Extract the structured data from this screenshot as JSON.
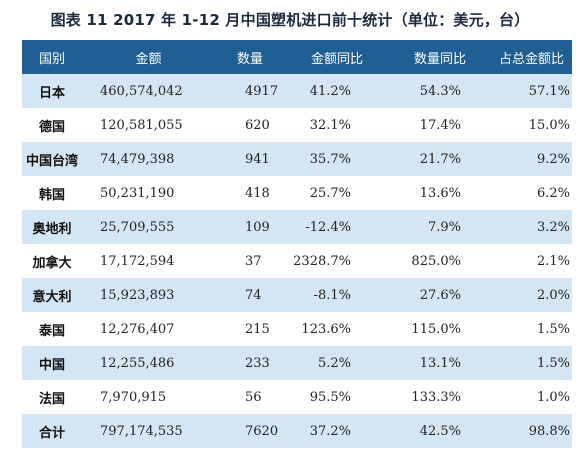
{
  "title": "图表 11    2017 年 1-12 月中国塑机进口前十统计（单位：美元，台）",
  "table": {
    "headers": [
      "国别",
      "金额",
      "数量",
      "金额同比",
      "数量同比",
      "占总金额比"
    ],
    "rows": [
      [
        "日本",
        "460,574,042",
        "4917",
        "41.2%",
        "54.3%",
        "57.1%"
      ],
      [
        "德国",
        "120,581,055",
        "620",
        "32.1%",
        "17.4%",
        "15.0%"
      ],
      [
        "中国台湾",
        "74,479,398",
        "941",
        "35.7%",
        "21.7%",
        "9.2%"
      ],
      [
        "韩国",
        "50,231,190",
        "418",
        "25.7%",
        "13.6%",
        "6.2%"
      ],
      [
        "奥地利",
        "25,709,555",
        "109",
        "-12.4%",
        "7.9%",
        "3.2%"
      ],
      [
        "加拿大",
        "17,172,594",
        "37",
        "2328.7%",
        "825.0%",
        "2.1%"
      ],
      [
        "意大利",
        "15,923,893",
        "74",
        "-8.1%",
        "27.6%",
        "2.0%"
      ],
      [
        "泰国",
        "12,276,407",
        "215",
        "123.6%",
        "115.0%",
        "1.5%"
      ],
      [
        "中国",
        "12,255,486",
        "233",
        "5.2%",
        "13.1%",
        "1.5%"
      ],
      [
        "法国",
        "7,970,915",
        "56",
        "95.5%",
        "133.3%",
        "1.0%"
      ],
      [
        "合计",
        "797,174,535",
        "7620",
        "37.2%",
        "42.5%",
        "98.8%"
      ]
    ]
  },
  "colors": {
    "header_bg": "#1f5f93",
    "band_bg": "#d4e6f3",
    "row_bg": "#ffffff"
  }
}
